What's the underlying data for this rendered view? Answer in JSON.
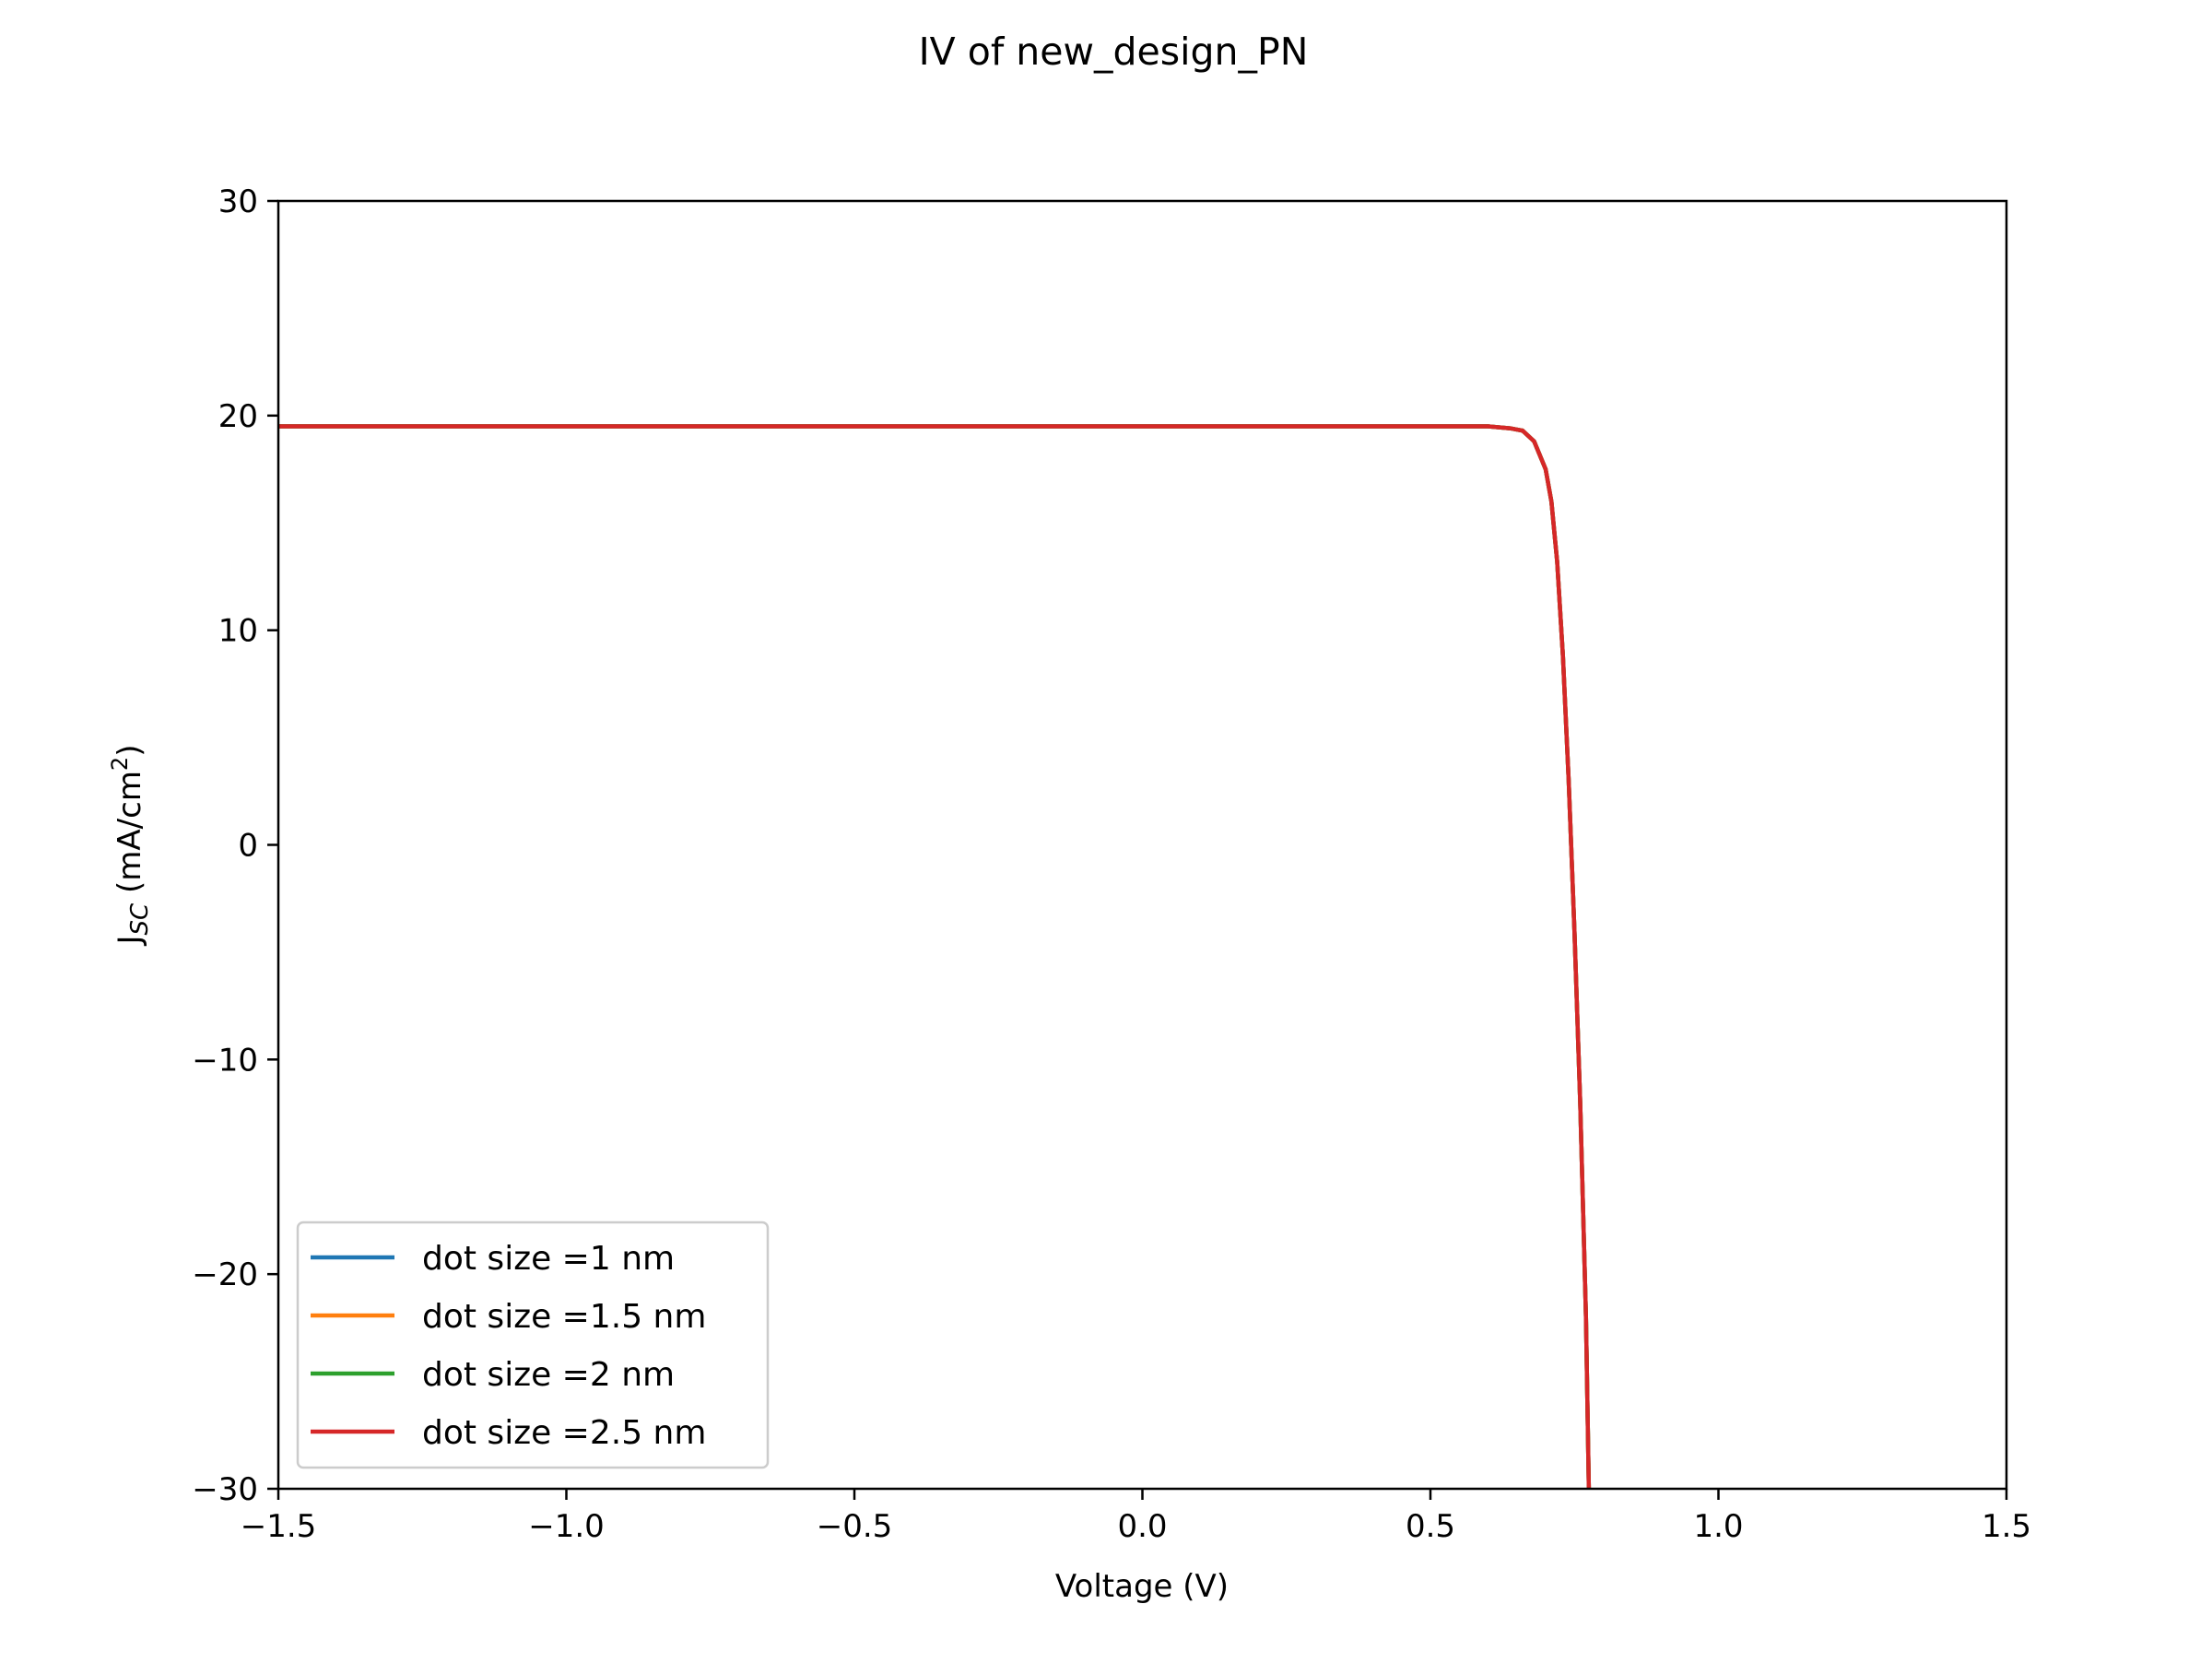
{
  "chart_data": {
    "type": "line",
    "title": "IV of new_design_PN",
    "xlabel": "Voltage (V)",
    "ylabel": {
      "main": "J",
      "subscript": "SC",
      "units_prefix": " (mA/cm",
      "units_superscript": "2",
      "units_suffix": ")"
    },
    "xlim": [
      -1.5,
      1.5
    ],
    "ylim": [
      -30,
      30
    ],
    "xticks": [
      -1.5,
      -1.0,
      -0.5,
      0.0,
      0.5,
      1.0,
      1.5
    ],
    "xtick_labels": [
      "−1.5",
      "−1.0",
      "−0.5",
      "0.0",
      "0.5",
      "1.0",
      "1.5"
    ],
    "yticks": [
      30,
      20,
      10,
      0,
      -10,
      -20,
      -30
    ],
    "ytick_labels": [
      "30",
      "20",
      "10",
      "0",
      "−10",
      "−20",
      "−30"
    ],
    "grid": false,
    "legend_position": "lower-left",
    "series": [
      {
        "name": "dot size =1 nm",
        "color": "#1f77b4",
        "x": [
          -1.5,
          -1.0,
          -0.5,
          0.0,
          0.5,
          0.6,
          0.64,
          0.66,
          0.68,
          0.7,
          0.71,
          0.72,
          0.73,
          0.74,
          0.75,
          0.76,
          0.77,
          0.775
        ],
        "y": [
          19.5,
          19.5,
          19.5,
          19.5,
          19.5,
          19.5,
          19.4,
          19.3,
          18.8,
          17.5,
          16.0,
          13.2,
          8.8,
          3.0,
          -4.0,
          -12.0,
          -22.0,
          -30.0
        ]
      },
      {
        "name": "dot size =1.5 nm",
        "color": "#ff7f0e",
        "x": [
          -1.5,
          -1.0,
          -0.5,
          0.0,
          0.5,
          0.6,
          0.64,
          0.66,
          0.68,
          0.7,
          0.71,
          0.72,
          0.73,
          0.74,
          0.75,
          0.76,
          0.77,
          0.775
        ],
        "y": [
          19.5,
          19.5,
          19.5,
          19.5,
          19.5,
          19.5,
          19.4,
          19.3,
          18.8,
          17.5,
          16.0,
          13.2,
          8.8,
          3.0,
          -4.0,
          -12.0,
          -22.0,
          -30.0
        ]
      },
      {
        "name": "dot size =2 nm",
        "color": "#2ca02c",
        "x": [
          -1.5,
          -1.0,
          -0.5,
          0.0,
          0.5,
          0.6,
          0.64,
          0.66,
          0.68,
          0.7,
          0.71,
          0.72,
          0.73,
          0.74,
          0.75,
          0.76,
          0.77,
          0.775
        ],
        "y": [
          19.5,
          19.5,
          19.5,
          19.5,
          19.5,
          19.5,
          19.4,
          19.3,
          18.8,
          17.5,
          16.0,
          13.2,
          8.8,
          3.0,
          -4.0,
          -12.0,
          -22.0,
          -30.0
        ]
      },
      {
        "name": "dot size =2.5 nm",
        "color": "#d62728",
        "x": [
          -1.5,
          -1.0,
          -0.5,
          0.0,
          0.5,
          0.6,
          0.64,
          0.66,
          0.68,
          0.7,
          0.71,
          0.72,
          0.73,
          0.74,
          0.75,
          0.76,
          0.77,
          0.775
        ],
        "y": [
          19.5,
          19.5,
          19.5,
          19.5,
          19.5,
          19.5,
          19.4,
          19.3,
          18.8,
          17.5,
          16.0,
          13.2,
          8.8,
          3.0,
          -4.0,
          -12.0,
          -22.0,
          -30.0
        ]
      }
    ]
  }
}
